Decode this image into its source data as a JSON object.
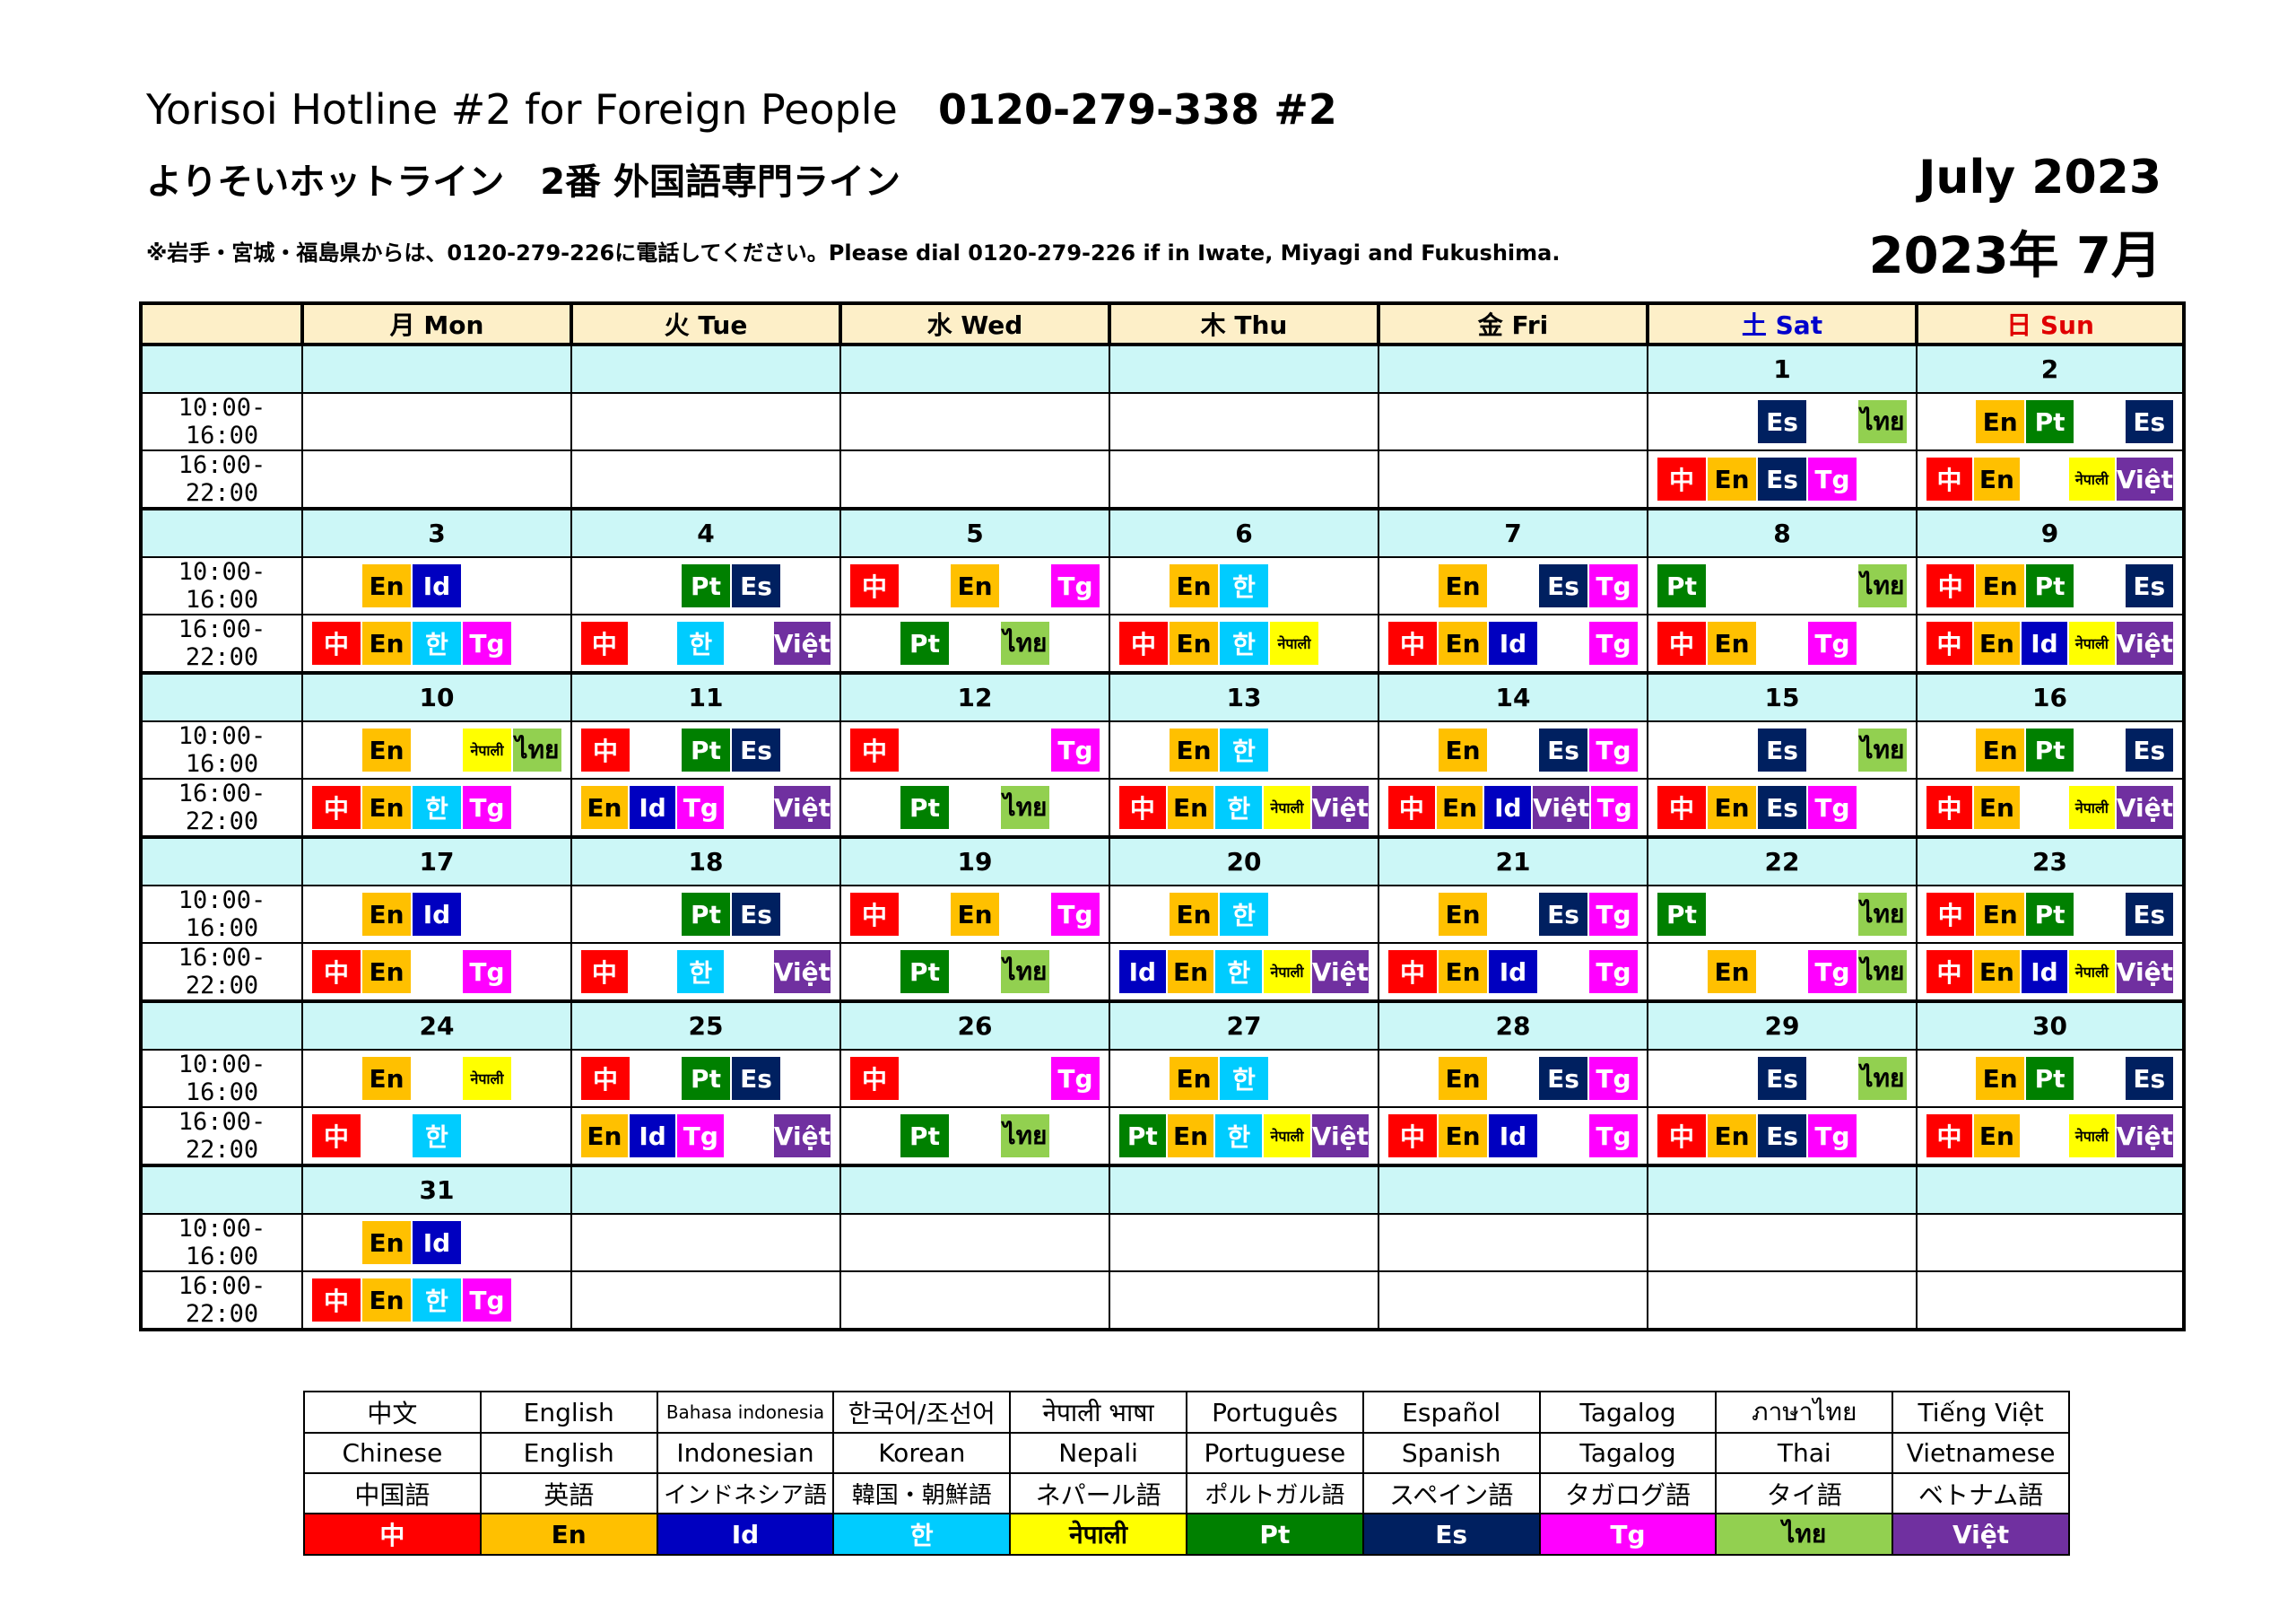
{
  "header": {
    "title_en": "Yorisoi Hotline #2 for Foreign People",
    "phone": "0120-279-338 #2",
    "title_jp": "よりそいホットライン　2番 外国語専門ライン",
    "note": "※岩手・宮城・福島県からは、0120-279-226に電話してください。Please dial 0120-279-226 if in Iwate, Miyagi and Fukushima.",
    "month_en": "July  2023",
    "month_jp": "2023年 7月"
  },
  "calendar": {
    "days": [
      "月 Mon",
      "火 Tue",
      "水 Wed",
      "木 Thu",
      "金 Fri",
      "土 Sat",
      "日 Sun"
    ],
    "slot_labels": [
      "10:00-16:00",
      "16:00-22:00"
    ],
    "weeks": [
      {
        "dates": [
          "",
          "",
          "",
          "",
          "",
          "1",
          "2"
        ],
        "morning": [
          [],
          [],
          [],
          [],
          [],
          [
            "",
            "",
            "Es",
            "",
            "ไทย"
          ],
          [
            "",
            "En",
            "Pt",
            "",
            "Es"
          ]
        ],
        "evening": [
          [],
          [],
          [],
          [],
          [],
          [
            "中",
            "En",
            "Es",
            "Tg",
            ""
          ],
          [
            "中",
            "En",
            "",
            "नेपाली",
            "Việt"
          ]
        ]
      },
      {
        "dates": [
          "3",
          "4",
          "5",
          "6",
          "7",
          "8",
          "9"
        ],
        "morning": [
          [
            "",
            "En",
            "Id",
            "",
            ""
          ],
          [
            "",
            "",
            "Pt",
            "Es",
            ""
          ],
          [
            "中",
            "",
            "En",
            "",
            "Tg"
          ],
          [
            "",
            "En",
            "한",
            "",
            ""
          ],
          [
            "",
            "En",
            "",
            "Es",
            "Tg"
          ],
          [
            "Pt",
            "",
            "",
            "",
            "ไทย"
          ],
          [
            "中",
            "En",
            "Pt",
            "",
            "Es"
          ]
        ],
        "evening": [
          [
            "中",
            "En",
            "한",
            "Tg",
            ""
          ],
          [
            "中",
            "",
            "한",
            "",
            "Việt"
          ],
          [
            "",
            "Pt",
            "",
            "ไทย",
            ""
          ],
          [
            "中",
            "En",
            "한",
            "नेपाली",
            ""
          ],
          [
            "中",
            "En",
            "Id",
            "",
            "Tg"
          ],
          [
            "中",
            "En",
            "",
            "Tg",
            ""
          ],
          [
            "中",
            "En",
            "Id",
            "नेपाली",
            "Việt"
          ]
        ]
      },
      {
        "dates": [
          "10",
          "11",
          "12",
          "13",
          "14",
          "15",
          "16"
        ],
        "morning": [
          [
            "",
            "En",
            "",
            "नेपाली",
            "ไทย"
          ],
          [
            "中",
            "",
            "Pt",
            "Es",
            ""
          ],
          [
            "中",
            "",
            "",
            "",
            "Tg"
          ],
          [
            "",
            "En",
            "한",
            "",
            ""
          ],
          [
            "",
            "En",
            "",
            "Es",
            "Tg"
          ],
          [
            "",
            "",
            "Es",
            "",
            "ไทย"
          ],
          [
            "",
            "En",
            "Pt",
            "",
            "Es"
          ]
        ],
        "evening": [
          [
            "中",
            "En",
            "한",
            "Tg",
            ""
          ],
          [
            "En",
            "Id",
            "Tg",
            "",
            "Việt"
          ],
          [
            "",
            "Pt",
            "",
            "ไทย",
            ""
          ],
          [
            "中",
            "En",
            "한",
            "नेपाली",
            "Việt"
          ],
          [
            "中",
            "En",
            "Id",
            "Việt",
            "Tg"
          ],
          [
            "中",
            "En",
            "Es",
            "Tg",
            ""
          ],
          [
            "中",
            "En",
            "",
            "नेपाली",
            "Việt"
          ]
        ]
      },
      {
        "dates": [
          "17",
          "18",
          "19",
          "20",
          "21",
          "22",
          "23"
        ],
        "morning": [
          [
            "",
            "En",
            "Id",
            "",
            ""
          ],
          [
            "",
            "",
            "Pt",
            "Es",
            ""
          ],
          [
            "中",
            "",
            "En",
            "",
            "Tg"
          ],
          [
            "",
            "En",
            "한",
            "",
            ""
          ],
          [
            "",
            "En",
            "",
            "Es",
            "Tg"
          ],
          [
            "Pt",
            "",
            "",
            "",
            "ไทย"
          ],
          [
            "中",
            "En",
            "Pt",
            "",
            "Es"
          ]
        ],
        "evening": [
          [
            "中",
            "En",
            "",
            "Tg",
            ""
          ],
          [
            "中",
            "",
            "한",
            "",
            "Việt"
          ],
          [
            "",
            "Pt",
            "",
            "ไทย",
            ""
          ],
          [
            "Id",
            "En",
            "한",
            "नेपाली",
            "Việt"
          ],
          [
            "中",
            "En",
            "Id",
            "",
            "Tg"
          ],
          [
            "",
            "En",
            "",
            "Tg",
            "ไทย"
          ],
          [
            "中",
            "En",
            "Id",
            "नेपाली",
            "Việt"
          ]
        ]
      },
      {
        "dates": [
          "24",
          "25",
          "26",
          "27",
          "28",
          "29",
          "30"
        ],
        "morning": [
          [
            "",
            "En",
            "",
            "नेपाली",
            ""
          ],
          [
            "中",
            "",
            "Pt",
            "Es",
            ""
          ],
          [
            "中",
            "",
            "",
            "",
            "Tg"
          ],
          [
            "",
            "En",
            "한",
            "",
            ""
          ],
          [
            "",
            "En",
            "",
            "Es",
            "Tg"
          ],
          [
            "",
            "",
            "Es",
            "",
            "ไทย"
          ],
          [
            "",
            "En",
            "Pt",
            "",
            "Es"
          ]
        ],
        "evening": [
          [
            "中",
            "",
            "한",
            "",
            ""
          ],
          [
            "En",
            "Id",
            "Tg",
            "",
            "Việt"
          ],
          [
            "",
            "Pt",
            "",
            "ไทย",
            ""
          ],
          [
            "Pt",
            "En",
            "한",
            "नेपाली",
            "Việt"
          ],
          [
            "中",
            "En",
            "Id",
            "",
            "Tg"
          ],
          [
            "中",
            "En",
            "Es",
            "Tg",
            ""
          ],
          [
            "中",
            "En",
            "",
            "नेपाली",
            "Việt"
          ]
        ]
      },
      {
        "dates": [
          "31",
          "",
          "",
          "",
          "",
          "",
          ""
        ],
        "morning": [
          [
            "",
            "En",
            "Id",
            "",
            ""
          ],
          [],
          [],
          [],
          [],
          [],
          []
        ],
        "evening": [
          [
            "中",
            "En",
            "한",
            "Tg",
            ""
          ],
          [],
          [],
          [],
          [],
          [],
          []
        ]
      }
    ]
  },
  "languages": [
    {
      "code": "中",
      "native": "中文",
      "english": "Chinese",
      "japanese": "中国語",
      "bg": "#ff0000",
      "fg": "#ffffff"
    },
    {
      "code": "En",
      "native": "English",
      "english": "English",
      "japanese": "英語",
      "bg": "#ffc000",
      "fg": "#000000"
    },
    {
      "code": "Id",
      "native": "Bahasa indonesia",
      "english": "Indonesian",
      "japanese": "インドネシア語",
      "bg": "#0000c0",
      "fg": "#ffffff"
    },
    {
      "code": "한",
      "native": "한국어/조선어",
      "english": "Korean",
      "japanese": "韓国・朝鮮語",
      "bg": "#00ccff",
      "fg": "#ffffff"
    },
    {
      "code": "नेपाली",
      "native": "नेपाली भाषा",
      "english": "Nepali",
      "japanese": "ネパール語",
      "bg": "#ffff00",
      "fg": "#000000"
    },
    {
      "code": "Pt",
      "native": "Português",
      "english": "Portuguese",
      "japanese": "ポルトガル語",
      "bg": "#008000",
      "fg": "#ffffff"
    },
    {
      "code": "Es",
      "native": "Español",
      "english": "Spanish",
      "japanese": "スペイン語",
      "bg": "#002060",
      "fg": "#ffffff"
    },
    {
      "code": "Tg",
      "native": "Tagalog",
      "english": "Tagalog",
      "japanese": "タガログ語",
      "bg": "#ff00ff",
      "fg": "#ffffff"
    },
    {
      "code": "ไทย",
      "native": "ภาษาไทย",
      "english": "Thai",
      "japanese": "タイ語",
      "bg": "#92d050",
      "fg": "#000000"
    },
    {
      "code": "Việt",
      "native": "Tiếng Việt",
      "english": "Vietnamese",
      "japanese": "ベトナム語",
      "bg": "#7030a0",
      "fg": "#ffffff"
    }
  ]
}
